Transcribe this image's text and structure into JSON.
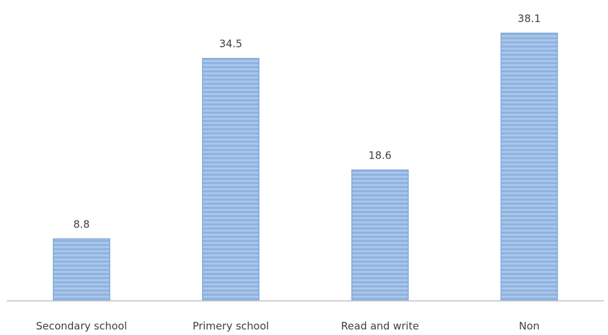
{
  "chart_data": {
    "type": "bar",
    "title": "",
    "xlabel": "",
    "ylabel": "",
    "categories": [
      "Secondary school",
      "Primery school",
      "Read and write",
      "Non"
    ],
    "values": [
      8.8,
      34.5,
      18.6,
      38.1
    ],
    "value_labels": [
      "8.8",
      "34.5",
      "18.6",
      "38.1"
    ],
    "ylim": [
      0,
      38.1
    ],
    "grid": false,
    "legend": "none",
    "colors": {
      "bar_fill": "#8FB3E0",
      "bar_stripe": "#A9C6EA",
      "bar_border": "#6E98CF",
      "axis": "#BFBFBF",
      "text": "#404040"
    }
  }
}
